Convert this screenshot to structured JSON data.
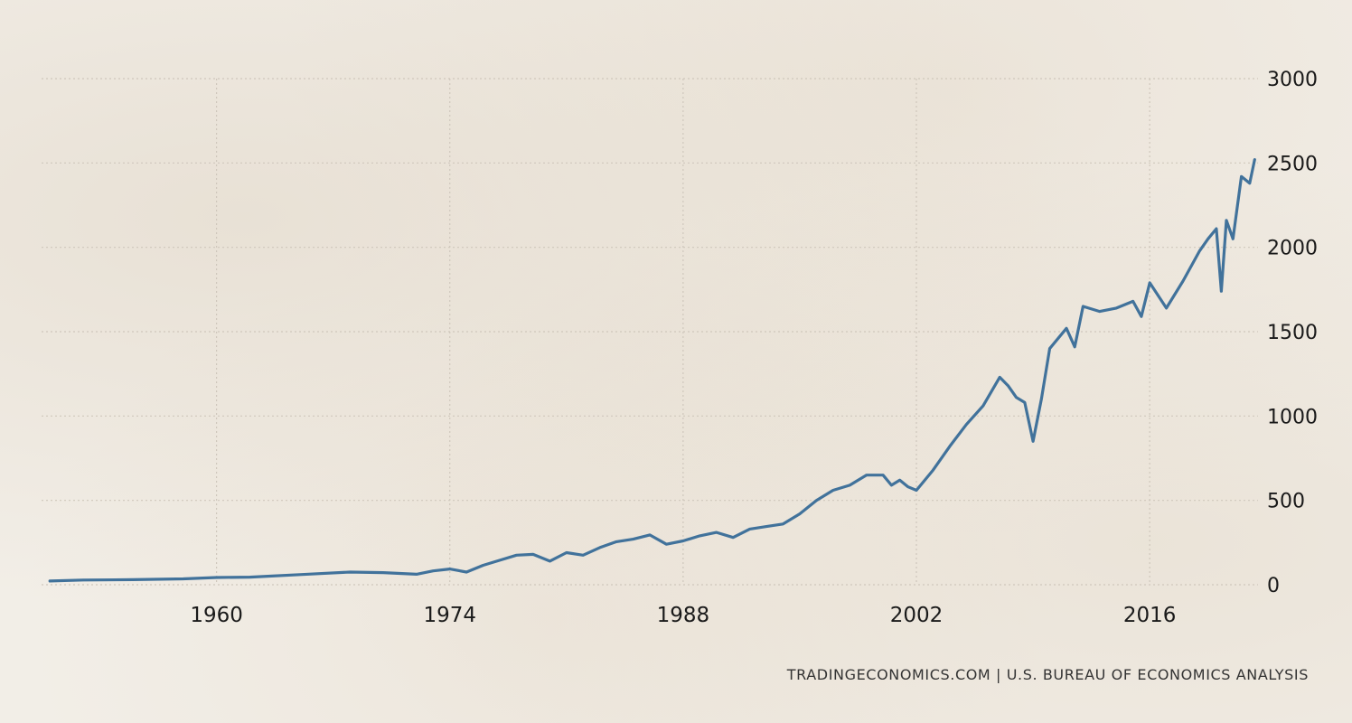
{
  "source_note": "TRADINGECONOMICS.COM | U.S. BUREAU OF ECONOMICS ANALYSIS",
  "colors": {
    "line": "#41729b",
    "grid": "#cfc7bc",
    "background": "#f2eee7",
    "text": "#1a1a1a"
  },
  "chart_data": {
    "type": "line",
    "title": "",
    "xlabel": "",
    "ylabel": "",
    "grid": true,
    "y_axis_side": "right",
    "xlim": [
      1949.5,
      2022.5
    ],
    "ylim": [
      0,
      3000
    ],
    "x_ticks": [
      1960,
      1974,
      1988,
      2002,
      2016
    ],
    "x_tick_labels": [
      "1960",
      "1974",
      "1988",
      "2002",
      "2016"
    ],
    "y_ticks": [
      0,
      500,
      1000,
      1500,
      2000,
      2500,
      3000
    ],
    "y_tick_labels": [
      "0",
      "500",
      "1000",
      "1500",
      "2000",
      "2500",
      "3000"
    ],
    "series": [
      {
        "color": "#41729b",
        "x": [
          1950,
          1952,
          1955,
          1958,
          1960,
          1962,
          1965,
          1968,
          1970,
          1972,
          1973,
          1974,
          1975,
          1976,
          1977,
          1978,
          1979,
          1980,
          1981,
          1982,
          1983,
          1984,
          1985,
          1986,
          1987,
          1988,
          1989,
          1990,
          1991,
          1992,
          1993,
          1994,
          1995,
          1996,
          1997,
          1998,
          1999,
          2000,
          2000.5,
          2001,
          2001.5,
          2002,
          2003,
          2004,
          2005,
          2006,
          2007,
          2007.5,
          2008,
          2008.5,
          2009,
          2009.5,
          2010,
          2011,
          2011.5,
          2012,
          2013,
          2014,
          2015,
          2015.5,
          2016,
          2017,
          2018,
          2019,
          2019.5,
          2020,
          2020.3,
          2020.6,
          2021,
          2021.5,
          2022,
          2022.3
        ],
        "y": [
          22,
          28,
          30,
          35,
          43,
          45,
          60,
          75,
          72,
          62,
          82,
          93,
          75,
          115,
          145,
          175,
          180,
          140,
          190,
          175,
          220,
          255,
          270,
          295,
          240,
          260,
          290,
          310,
          280,
          330,
          345,
          360,
          420,
          500,
          560,
          590,
          650,
          650,
          590,
          620,
          580,
          560,
          680,
          820,
          950,
          1060,
          1230,
          1180,
          1110,
          1080,
          850,
          1100,
          1400,
          1520,
          1410,
          1650,
          1620,
          1640,
          1680,
          1590,
          1790,
          1640,
          1800,
          1980,
          2050,
          2110,
          1740,
          2160,
          2050,
          2420,
          2380,
          2520
        ]
      }
    ]
  }
}
